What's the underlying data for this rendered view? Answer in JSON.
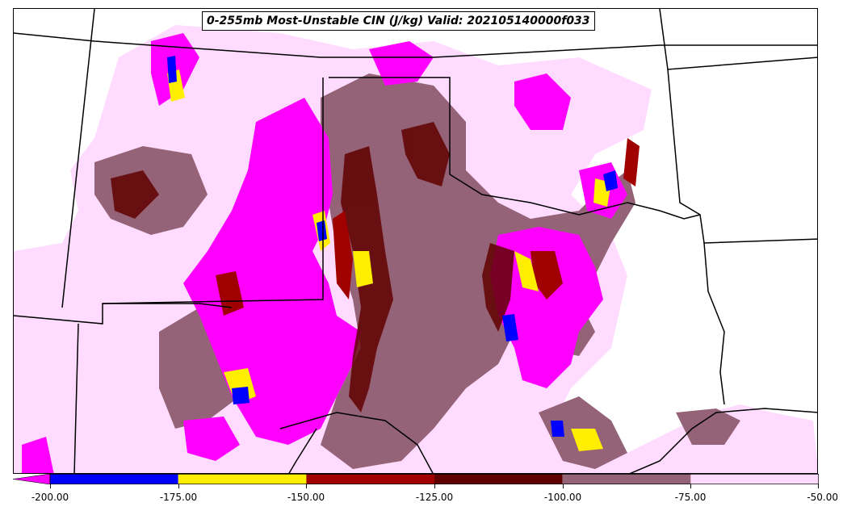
{
  "title": "0-255mb Most-Unstable CIN (J/kg) Valid: 202105140000f033",
  "colors": {
    "lt_-200": "#ff00ff",
    "-200_-175": "#0000ff",
    "-175_-150": "#ffee00",
    "-150_-125": "#a00000",
    "-125_-100": "#600000",
    "-100_-75": "#956377",
    "-75_-50": "#ffdcff",
    "boundary": "#000000"
  },
  "colorbar": {
    "ticks": [
      "-200.00",
      "-175.00",
      "-150.00",
      "-125.00",
      "-100.00",
      "-75.00",
      "-50.00"
    ],
    "tick_values": [
      -200,
      -175,
      -150,
      -125,
      -100,
      -75,
      -50
    ],
    "extend": "min"
  }
}
